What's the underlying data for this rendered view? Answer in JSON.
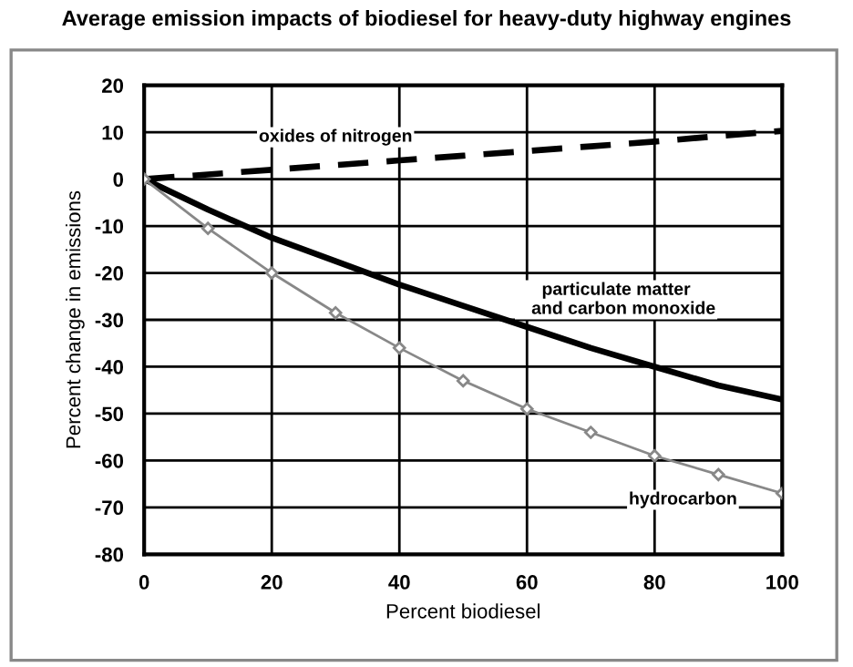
{
  "chart_data": {
    "type": "line",
    "title": "Average emission impacts of biodiesel for heavy-duty highway engines",
    "xlabel": "Percent biodiesel",
    "ylabel": "Percent change in emissions",
    "x": [
      0,
      10,
      20,
      30,
      40,
      50,
      60,
      70,
      80,
      90,
      100
    ],
    "series": [
      {
        "color": "#000000",
        "line_style": "dashed",
        "values": [
          0,
          1,
          2,
          3,
          4,
          5,
          6,
          7,
          8,
          9.2,
          10.3
        ]
      },
      {
        "color": "#000000",
        "line_style": "solid",
        "values": [
          0,
          -6.5,
          -12.5,
          -17.5,
          -22.5,
          -27,
          -31.5,
          -36,
          -40,
          -44,
          -47
        ]
      },
      {
        "color": "#888888",
        "line_style": "solid",
        "marker": "diamond",
        "values": [
          0,
          -10.5,
          -20,
          -28.5,
          -36,
          -43,
          -49,
          -54,
          -59,
          -63,
          -67
        ]
      }
    ],
    "annotations": [
      {
        "text": "oxides of nitrogen",
        "x": 30,
        "y": 3
      },
      {
        "text": "particulate matter\n   and carbon monoxide",
        "x": 70,
        "y": -36
      },
      {
        "text": "hydrocarbon",
        "x": 90,
        "y": -63
      }
    ],
    "xlim": [
      0,
      100
    ],
    "ylim": [
      -80,
      20
    ],
    "xticks": [
      0,
      20,
      40,
      60,
      80,
      100
    ],
    "yticks": [
      -80,
      -70,
      -60,
      -50,
      -40,
      -30,
      -20,
      -10,
      0,
      10,
      20
    ],
    "grid": true,
    "legend": false
  }
}
